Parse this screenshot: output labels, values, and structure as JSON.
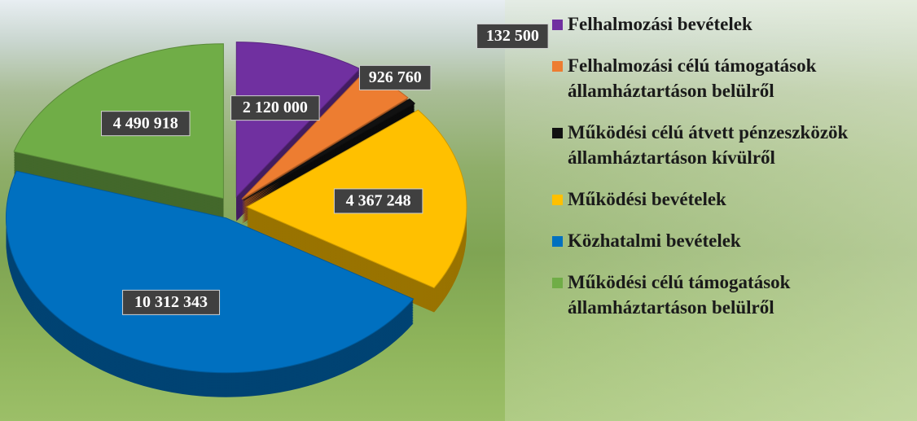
{
  "chart_data": {
    "type": "pie",
    "categories": [
      "Felhalmozási bevételek",
      "Felhalmozási célú támogatások államháztartáson belülről",
      "Működési célú átvett pénzeszközök államháztartáson kívülről",
      "Működési bevételek",
      "Közhatalmi bevételek",
      "Működési célú támogatások államháztartáson belülről"
    ],
    "values": [
      2120000,
      926760,
      132500,
      4367248,
      10312343,
      4490918
    ],
    "value_labels": [
      "2 120 000",
      "926 760",
      "132 500",
      "4 367 248",
      "10 312 343",
      "4 490 918"
    ],
    "colors": [
      "#7030a0",
      "#ed7d31",
      "#111111",
      "#ffc000",
      "#0070c0",
      "#70ad47"
    ],
    "legend": "right"
  }
}
